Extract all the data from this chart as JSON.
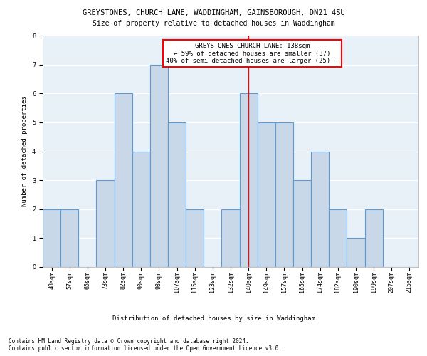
{
  "title": "GREYSTONES, CHURCH LANE, WADDINGHAM, GAINSBOROUGH, DN21 4SU",
  "subtitle": "Size of property relative to detached houses in Waddingham",
  "xlabel": "Distribution of detached houses by size in Waddingham",
  "ylabel": "Number of detached properties",
  "footer_line1": "Contains HM Land Registry data © Crown copyright and database right 2024.",
  "footer_line2": "Contains public sector information licensed under the Open Government Licence v3.0.",
  "categories": [
    "48sqm",
    "57sqm",
    "65sqm",
    "73sqm",
    "82sqm",
    "90sqm",
    "98sqm",
    "107sqm",
    "115sqm",
    "123sqm",
    "132sqm",
    "140sqm",
    "149sqm",
    "157sqm",
    "165sqm",
    "174sqm",
    "182sqm",
    "190sqm",
    "199sqm",
    "207sqm",
    "215sqm"
  ],
  "values": [
    2,
    2,
    0,
    3,
    6,
    4,
    7,
    5,
    2,
    0,
    2,
    6,
    5,
    5,
    3,
    4,
    2,
    1,
    2,
    0,
    0
  ],
  "bar_color": "#c8d8e8",
  "bar_edge_color": "#5b9bd5",
  "highlight_index": 11,
  "highlight_line_color": "red",
  "annotation_text": "GREYSTONES CHURCH LANE: 138sqm\n← 59% of detached houses are smaller (37)\n40% of semi-detached houses are larger (25) →",
  "annotation_box_color": "white",
  "annotation_box_edge_color": "red",
  "ylim": [
    0,
    8
  ],
  "yticks": [
    0,
    1,
    2,
    3,
    4,
    5,
    6,
    7,
    8
  ],
  "bg_color": "#e8f0f8",
  "grid_color": "white",
  "title_fontsize": 7.5,
  "subtitle_fontsize": 7,
  "axis_label_fontsize": 6.5,
  "tick_fontsize": 6,
  "footer_fontsize": 5.5,
  "annot_fontsize": 6.5
}
